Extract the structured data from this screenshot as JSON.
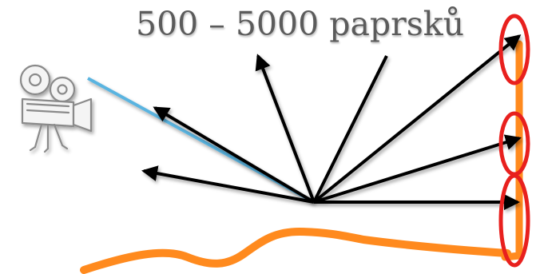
{
  "title": "500 – 5000 paprsků",
  "icons": {
    "camera": "movie-camera-icon"
  },
  "colors": {
    "camera_ray": "#5ab4e0",
    "surface": "#ff8a1e",
    "wall": "#ff8a1e",
    "rays": "#000000",
    "highlight_ellipses": "#e8201e",
    "title": "#5b5b5b"
  }
}
